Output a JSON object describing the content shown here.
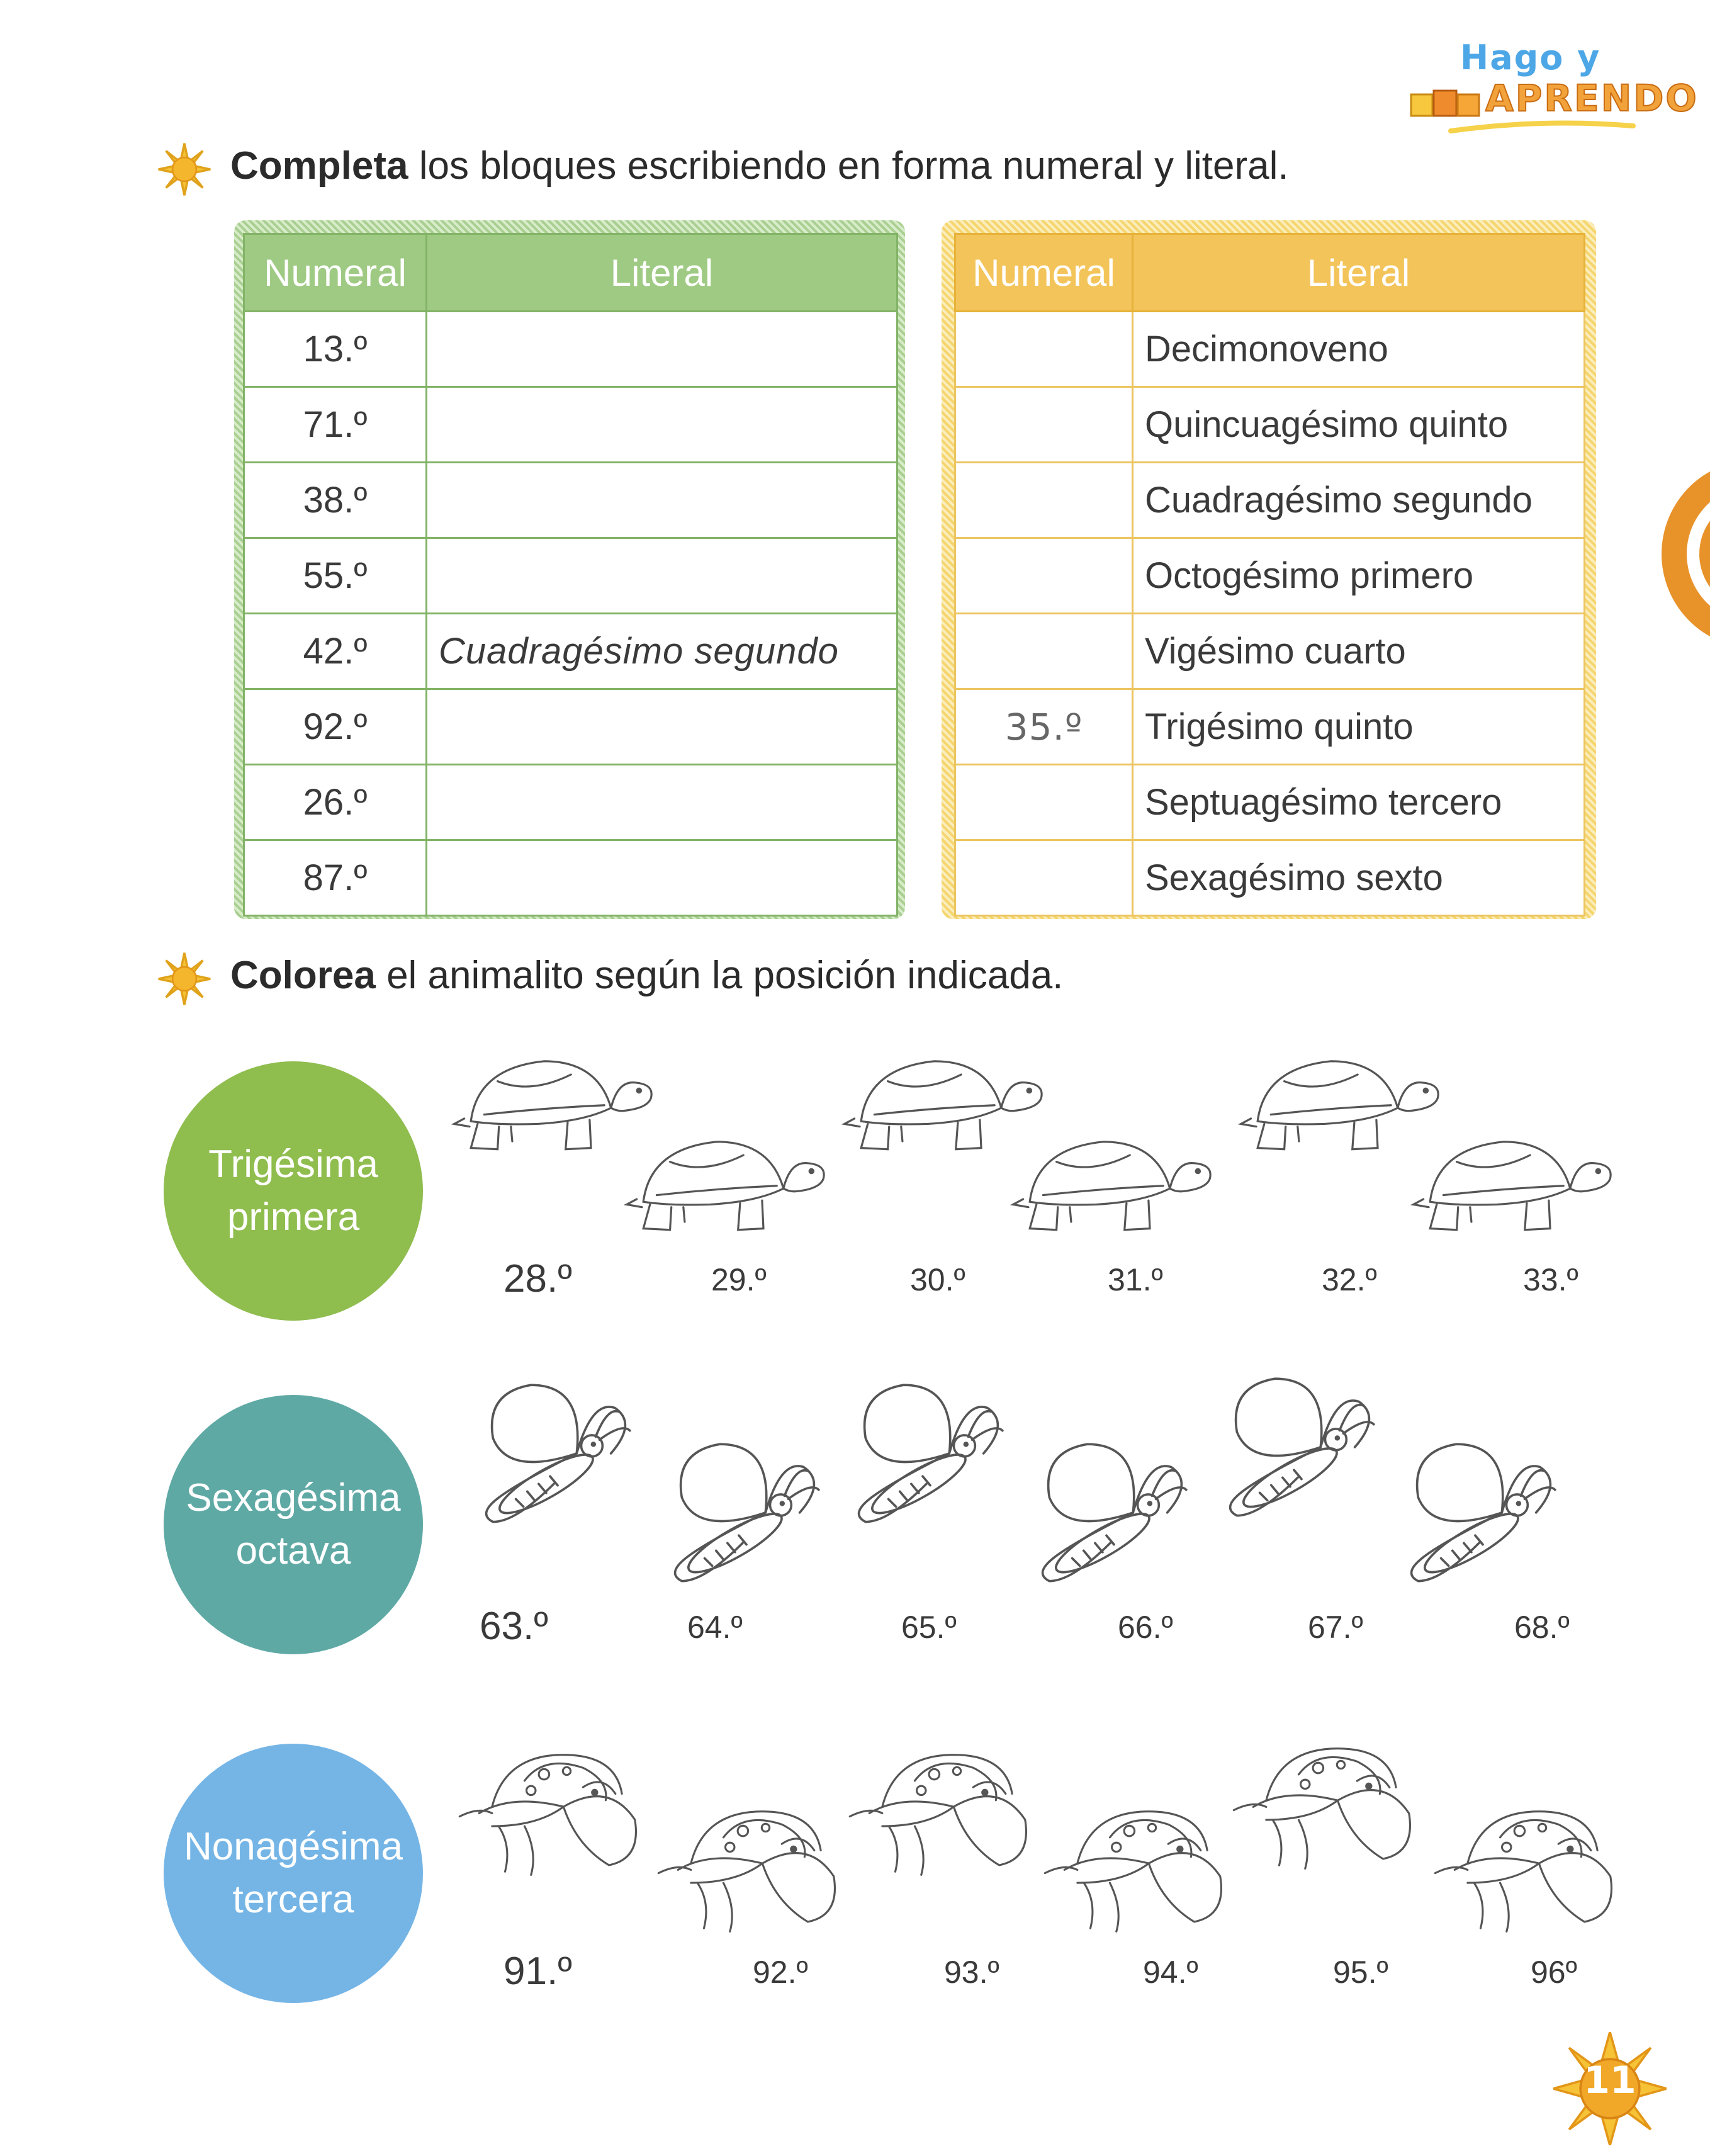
{
  "logo": {
    "line1": "Hago y",
    "line2": "APRENDO"
  },
  "section1": {
    "instruction_bold": "Completa",
    "instruction_rest": " los bloques escribiendo en forma numeral y literal."
  },
  "table_green": {
    "header_numeral": "Numeral",
    "header_literal": "Literal",
    "rows": [
      {
        "numeral": "13.º",
        "literal": ""
      },
      {
        "numeral": "71.º",
        "literal": ""
      },
      {
        "numeral": "38.º",
        "literal": ""
      },
      {
        "numeral": "55.º",
        "literal": ""
      },
      {
        "numeral": "42.º",
        "literal": "Cuadragésimo segundo"
      },
      {
        "numeral": "92.º",
        "literal": ""
      },
      {
        "numeral": "26.º",
        "literal": ""
      },
      {
        "numeral": "87.º",
        "literal": ""
      }
    ]
  },
  "table_yellow": {
    "header_numeral": "Numeral",
    "header_literal": "Literal",
    "rows": [
      {
        "numeral": "",
        "literal": "Decimonoveno"
      },
      {
        "numeral": "",
        "literal": "Quincuagésimo quinto"
      },
      {
        "numeral": "",
        "literal": "Cuadragésimo segundo"
      },
      {
        "numeral": "",
        "literal": "Octogésimo primero"
      },
      {
        "numeral": "",
        "literal": "Vigésimo cuarto"
      },
      {
        "numeral": "35.º",
        "literal": "Trigésimo quinto"
      },
      {
        "numeral": "",
        "literal": "Septuagésimo tercero"
      },
      {
        "numeral": "",
        "literal": "Sexagésimo sexto"
      }
    ]
  },
  "section2": {
    "instruction_bold": "Colorea",
    "instruction_rest": " el animalito según la posición indicada."
  },
  "rows": [
    {
      "circle_line1": "Trigésima",
      "circle_line2": "primera",
      "animal_icon": "turtle-icon",
      "labels": [
        "28.º",
        "29.º",
        "30.º",
        "31.º",
        "32.º",
        "33.º"
      ]
    },
    {
      "circle_line1": "Sexagésima",
      "circle_line2": "octava",
      "animal_icon": "butterfly-icon",
      "labels": [
        "63.º",
        "64.º",
        "65.º",
        "66.º",
        "67.º",
        "68.º"
      ]
    },
    {
      "circle_line1": "Nonagésima",
      "circle_line2": "tercera",
      "animal_icon": "ladybug-icon",
      "labels": [
        "91.º",
        "92.º",
        "93.º",
        "94.º",
        "95.º",
        "96º"
      ]
    }
  ],
  "page_number": "11",
  "colors": {
    "green_header": "#9fca83",
    "yellow_header": "#f3c45a",
    "circle1": "#8fbd4e",
    "circle2": "#5fa9a5",
    "circle3": "#75b5e6",
    "orange_accent": "#e8922a"
  }
}
